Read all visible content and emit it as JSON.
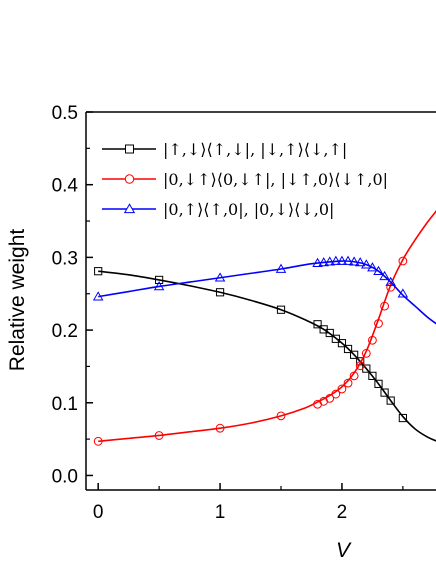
{
  "chart_data": {
    "type": "line",
    "xlabel": "V",
    "ylabel": "Relative weight",
    "xlim": [
      -0.1,
      2.78
    ],
    "ylim": [
      -0.02,
      0.5
    ],
    "xticks": [
      0,
      1,
      2
    ],
    "yticks": [
      0.0,
      0.1,
      0.2,
      0.3,
      0.4,
      0.5
    ],
    "xtick_labels": [
      "0",
      "1",
      "2"
    ],
    "ytick_labels": [
      "0.0",
      "0.1",
      "0.2",
      "0.3",
      "0.4",
      "0.5"
    ],
    "grid": false,
    "legend_position": "top-left",
    "series": [
      {
        "name": "|↑,↓⟩⟨↑,↓|, |↓,↑⟩⟨↓,↑|",
        "color": "#000000",
        "marker": "square",
        "curve": {
          "x": [
            0,
            0.25,
            0.5,
            0.75,
            1.0,
            1.25,
            1.5,
            1.7,
            1.85,
            2.0,
            2.1,
            2.2,
            2.3,
            2.4,
            2.5,
            2.6,
            2.7,
            2.78
          ],
          "y": [
            0.281,
            0.276,
            0.269,
            0.261,
            0.252,
            0.241,
            0.228,
            0.214,
            0.201,
            0.182,
            0.166,
            0.147,
            0.126,
            0.103,
            0.081,
            0.064,
            0.053,
            0.047
          ]
        },
        "points": {
          "x": [
            0,
            0.5,
            1.0,
            1.5,
            1.8,
            1.85,
            1.9,
            1.95,
            2.0,
            2.05,
            2.1,
            2.15,
            2.2,
            2.25,
            2.3,
            2.35,
            2.4,
            2.5
          ],
          "y": [
            0.281,
            0.269,
            0.252,
            0.228,
            0.208,
            0.201,
            0.196,
            0.188,
            0.182,
            0.174,
            0.166,
            0.157,
            0.147,
            0.137,
            0.126,
            0.114,
            0.103,
            0.079
          ]
        }
      },
      {
        "name": "|0,↓↑⟩⟨0,↓↑|, |↓↑,0⟩⟨↓↑,0|",
        "color": "#ff0000",
        "marker": "circle",
        "curve": {
          "x": [
            0,
            0.25,
            0.5,
            0.75,
            1.0,
            1.25,
            1.5,
            1.7,
            1.8,
            1.9,
            2.0,
            2.1,
            2.2,
            2.3,
            2.4,
            2.5,
            2.6,
            2.7,
            2.78
          ],
          "y": [
            0.047,
            0.051,
            0.055,
            0.06,
            0.065,
            0.072,
            0.082,
            0.093,
            0.101,
            0.11,
            0.122,
            0.141,
            0.171,
            0.215,
            0.262,
            0.297,
            0.324,
            0.348,
            0.365
          ]
        },
        "points": {
          "x": [
            0,
            0.5,
            1.0,
            1.5,
            1.8,
            1.85,
            1.9,
            1.95,
            2.0,
            2.05,
            2.1,
            2.15,
            2.2,
            2.25,
            2.3,
            2.35,
            2.4,
            2.5
          ],
          "y": [
            0.047,
            0.055,
            0.065,
            0.082,
            0.098,
            0.102,
            0.106,
            0.112,
            0.119,
            0.127,
            0.137,
            0.151,
            0.168,
            0.186,
            0.209,
            0.233,
            0.259,
            0.295
          ]
        }
      },
      {
        "name": "|0,↑⟩⟨↑,0|, |0,↓⟩⟨↓,0|",
        "color": "#0000ff",
        "marker": "triangle",
        "curve": {
          "x": [
            0,
            0.25,
            0.5,
            0.75,
            1.0,
            1.25,
            1.5,
            1.7,
            1.85,
            2.0,
            2.1,
            2.2,
            2.3,
            2.4,
            2.5,
            2.6,
            2.7,
            2.78
          ],
          "y": [
            0.246,
            0.253,
            0.26,
            0.266,
            0.272,
            0.278,
            0.284,
            0.29,
            0.293,
            0.295,
            0.294,
            0.29,
            0.281,
            0.266,
            0.248,
            0.233,
            0.218,
            0.208
          ]
        },
        "points": {
          "x": [
            0,
            0.5,
            1.0,
            1.5,
            1.8,
            1.85,
            1.9,
            1.95,
            2.0,
            2.05,
            2.1,
            2.15,
            2.2,
            2.25,
            2.3,
            2.35,
            2.4,
            2.5
          ],
          "y": [
            0.246,
            0.26,
            0.272,
            0.284,
            0.292,
            0.293,
            0.294,
            0.295,
            0.295,
            0.295,
            0.294,
            0.293,
            0.29,
            0.286,
            0.281,
            0.274,
            0.266,
            0.25
          ]
        }
      }
    ]
  }
}
